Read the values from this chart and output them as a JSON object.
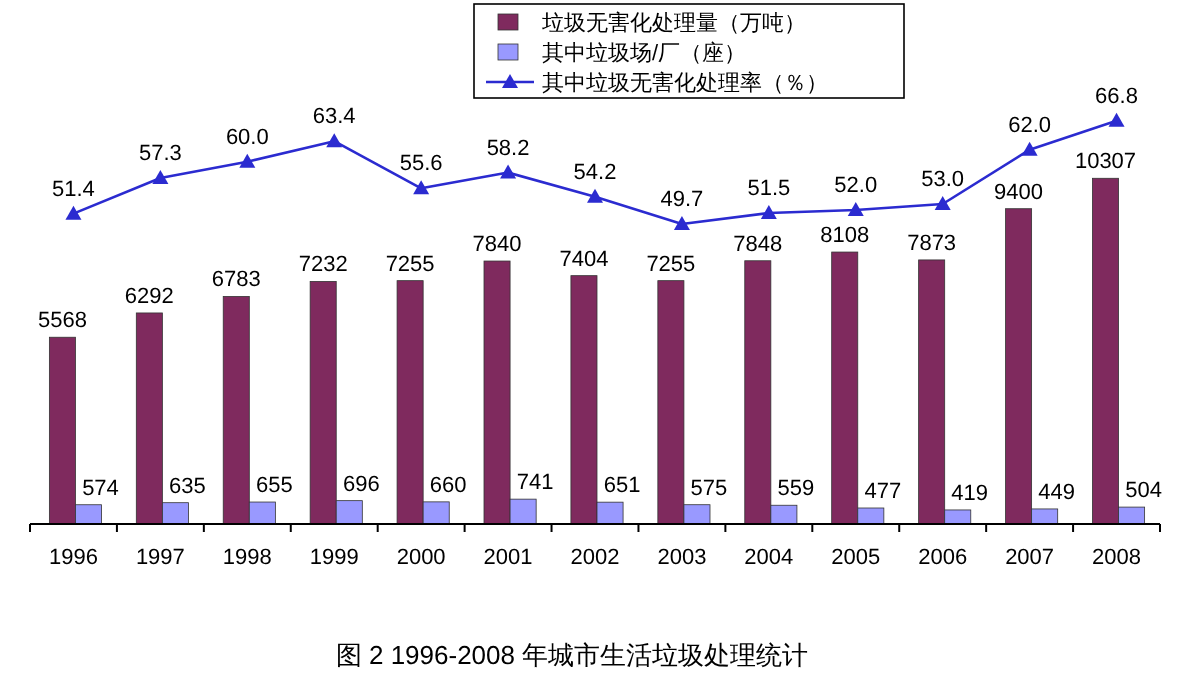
{
  "chart_data": {
    "type": "bar",
    "tick_labels": "x",
    "legend": "top",
    "grid": false,
    "categories": [
      "1996",
      "1997",
      "1998",
      "1999",
      "2000",
      "2001",
      "2002",
      "2003",
      "2004",
      "2005",
      "2006",
      "2007",
      "2008"
    ],
    "series": [
      {
        "name": "垃圾无害化处理量（万吨）",
        "color": "#7f2a5e",
        "values": [
          5568,
          6292,
          6783,
          7232,
          7255,
          7840,
          7404,
          7255,
          7848,
          8108,
          7873,
          9400,
          10307
        ],
        "value_labels": [
          "5568",
          "6292",
          "6783",
          "7232",
          "7255",
          "7840",
          "7404",
          "7255",
          "7848",
          "8108",
          "7873",
          "9400",
          "10307"
        ]
      },
      {
        "name": "其中垃圾场/厂（座）",
        "color": "#9999ff",
        "values": [
          574,
          635,
          655,
          696,
          660,
          741,
          651,
          575,
          559,
          477,
          419,
          449,
          504
        ],
        "value_labels": [
          "574",
          "635",
          "655",
          "696",
          "660",
          "741",
          "651",
          "575",
          "559",
          "477",
          "419",
          "449",
          "504"
        ]
      },
      {
        "name": "其中垃圾无害化处理率（％）",
        "type": "line",
        "axis": "y2",
        "marker": "triangle",
        "color": "#2b2bd0",
        "values": [
          51.4,
          57.3,
          60.0,
          63.4,
          55.6,
          58.2,
          54.2,
          49.7,
          51.5,
          52.0,
          53.0,
          62.0,
          66.8
        ],
        "value_labels": [
          "51.4",
          "57.3",
          "60.0",
          "63.4",
          "55.6",
          "58.2",
          "54.2",
          "49.7",
          "51.5",
          "52.0",
          "53.0",
          "62.0",
          "66.8"
        ]
      }
    ],
    "annotations": [
      "图 2   1996-2008 年城市生活垃圾处理统计"
    ]
  }
}
